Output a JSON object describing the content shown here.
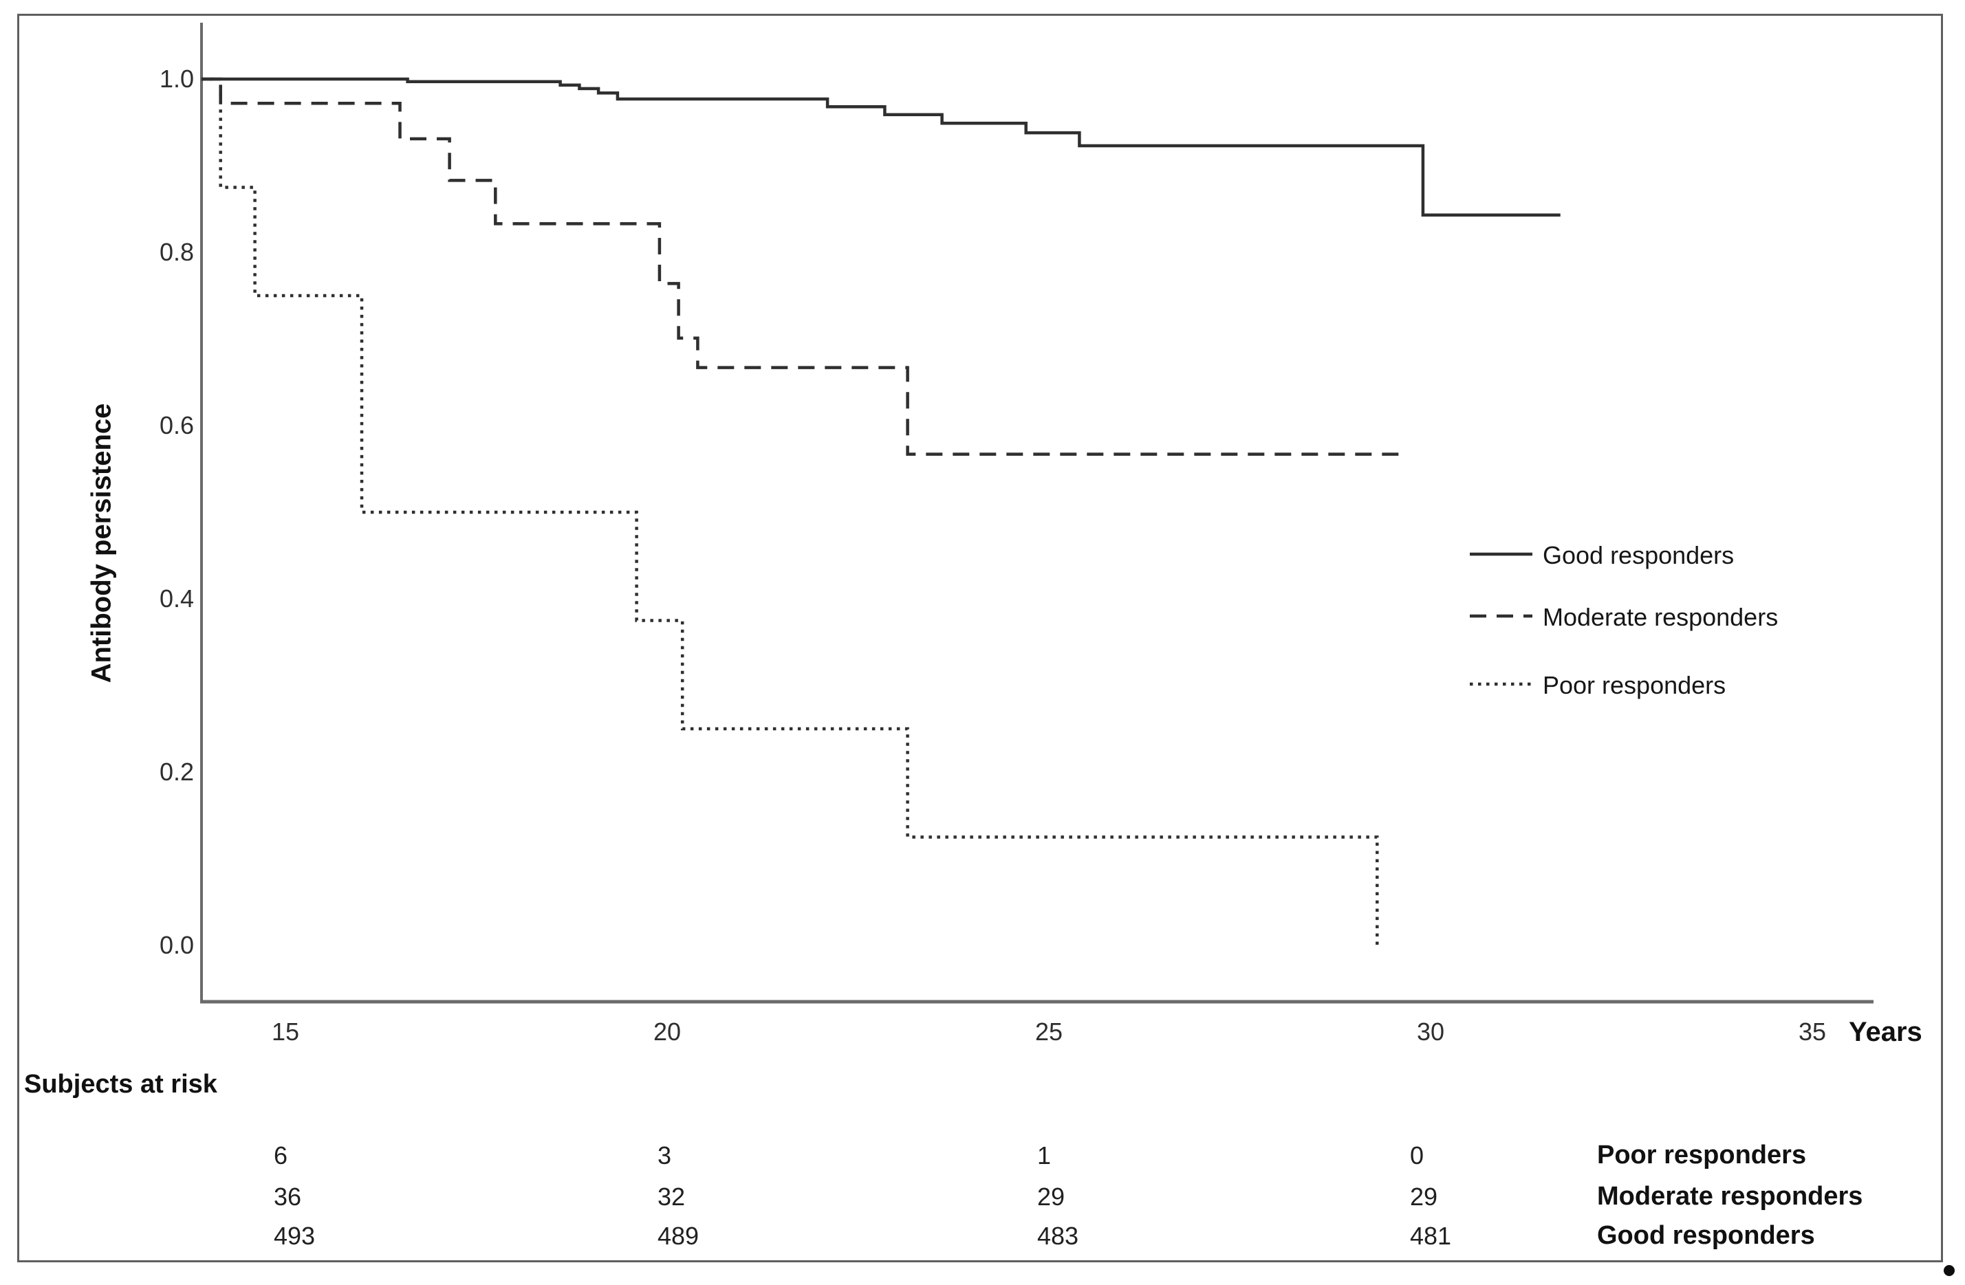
{
  "chart_data": {
    "type": "line",
    "subtype": "kaplan-meier-step",
    "title": "",
    "xlabel": "Years",
    "ylabel": "Antibody persistence",
    "xlim": [
      13.9,
      35.8
    ],
    "ylim": [
      0.0,
      1.0
    ],
    "x_ticks": [
      15,
      20,
      25,
      30,
      35
    ],
    "y_ticks": [
      "1.0",
      "0.8",
      "0.6",
      "0.4",
      "0.2",
      "0.0"
    ],
    "y_tick_values": [
      1.0,
      0.8,
      0.6,
      0.4,
      0.2,
      0.0
    ],
    "grid": false,
    "legend_position": "right-middle",
    "series": [
      {
        "name": "Good responders",
        "style": "solid",
        "color": "#2f2f2f",
        "end_year": 31.7,
        "steps": [
          [
            13.9,
            1.0
          ],
          [
            16.6,
            0.997
          ],
          [
            18.6,
            0.993
          ],
          [
            18.85,
            0.989
          ],
          [
            19.1,
            0.984
          ],
          [
            19.35,
            0.977
          ],
          [
            22.1,
            0.968
          ],
          [
            22.85,
            0.959
          ],
          [
            23.6,
            0.949
          ],
          [
            24.7,
            0.938
          ],
          [
            25.4,
            0.923
          ],
          [
            29.9,
            0.843
          ]
        ]
      },
      {
        "name": "Moderate responders",
        "style": "dashed",
        "color": "#2f2f2f",
        "end_year": 29.6,
        "steps": [
          [
            13.9,
            1.0
          ],
          [
            14.15,
            0.972
          ],
          [
            16.5,
            0.931
          ],
          [
            17.15,
            0.883
          ],
          [
            17.75,
            0.833
          ],
          [
            19.9,
            0.764
          ],
          [
            20.15,
            0.701
          ],
          [
            20.4,
            0.667
          ],
          [
            23.15,
            0.567
          ]
        ]
      },
      {
        "name": "Poor responders",
        "style": "dotted",
        "color": "#2f2f2f",
        "end_year": 29.3,
        "steps": [
          [
            13.9,
            1.0
          ],
          [
            14.15,
            0.875
          ],
          [
            14.6,
            0.75
          ],
          [
            16.0,
            0.5
          ],
          [
            19.6,
            0.375
          ],
          [
            20.2,
            0.25
          ],
          [
            23.15,
            0.125
          ],
          [
            29.3,
            0.0
          ]
        ]
      }
    ]
  },
  "legend": {
    "items": [
      {
        "label": "Good responders",
        "style": "solid"
      },
      {
        "label": "Moderate responders",
        "style": "dashed"
      },
      {
        "label": "Poor responders",
        "style": "dotted"
      }
    ]
  },
  "at_risk_table": {
    "title": "Subjects at risk",
    "time_points": [
      15,
      20,
      25,
      30
    ],
    "rows": [
      {
        "label": "Poor responders",
        "counts": [
          "6",
          "3",
          "1",
          "0"
        ]
      },
      {
        "label": "Moderate responders",
        "counts": [
          "36",
          "32",
          "29",
          "29"
        ]
      },
      {
        "label": "Good responders",
        "counts": [
          "493",
          "489",
          "483",
          "481"
        ]
      }
    ]
  },
  "caption_period": "."
}
